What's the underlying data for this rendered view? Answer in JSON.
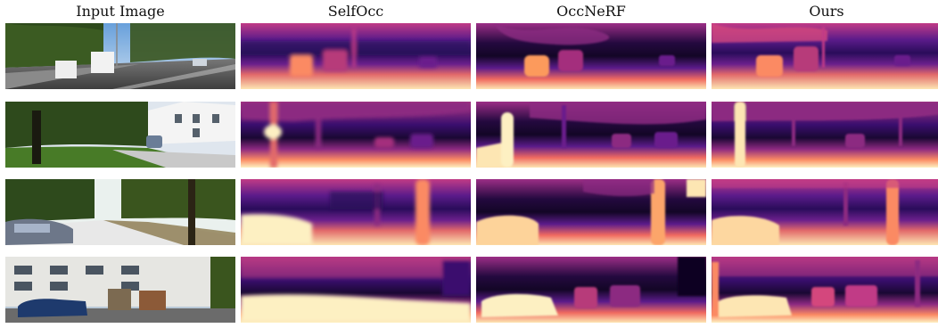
{
  "headers": {
    "input": "Input Image",
    "selfocc": "SelfOcc",
    "occnerf": "OccNeRF",
    "ours": "Ours"
  },
  "colors": {
    "depth_far": "#000004",
    "depth_mid_dark": "#3b0f70",
    "depth_mid": "#8c2981",
    "depth_mid_light": "#de4968",
    "depth_near": "#fe9f6d",
    "depth_nearest": "#fcfdbf",
    "sky": "#8fb6e0",
    "foliage": "#2f4a1e",
    "road": "#555555"
  }
}
